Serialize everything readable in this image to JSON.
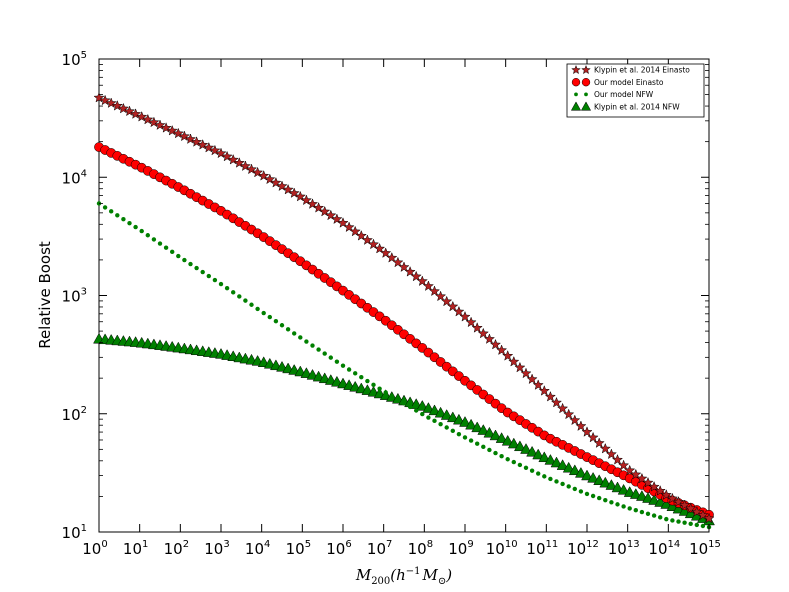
{
  "chart_data": {
    "type": "scatter",
    "xlabel": {
      "text": "M",
      "sub": "200",
      "rest": "(h",
      "sup": "−1",
      "rest2": "M",
      "sub2": "⊙",
      "close": ")"
    },
    "ylabel": "Relative Boost",
    "x_scale": "log",
    "y_scale": "log",
    "xlim": [
      1,
      1000000000000000.0
    ],
    "ylim": [
      10,
      100000
    ],
    "x_ticks": [
      {
        "base": "10",
        "exp": "0"
      },
      {
        "base": "10",
        "exp": "1"
      },
      {
        "base": "10",
        "exp": "2"
      },
      {
        "base": "10",
        "exp": "3"
      },
      {
        "base": "10",
        "exp": "4"
      },
      {
        "base": "10",
        "exp": "5"
      },
      {
        "base": "10",
        "exp": "6"
      },
      {
        "base": "10",
        "exp": "7"
      },
      {
        "base": "10",
        "exp": "8"
      },
      {
        "base": "10",
        "exp": "9"
      },
      {
        "base": "10",
        "exp": "10"
      },
      {
        "base": "10",
        "exp": "11"
      },
      {
        "base": "10",
        "exp": "12"
      },
      {
        "base": "10",
        "exp": "13"
      },
      {
        "base": "10",
        "exp": "14"
      },
      {
        "base": "10",
        "exp": "15"
      }
    ],
    "y_ticks": [
      {
        "base": "10",
        "exp": "1"
      },
      {
        "base": "10",
        "exp": "2"
      },
      {
        "base": "10",
        "exp": "3"
      },
      {
        "base": "10",
        "exp": "4"
      },
      {
        "base": "10",
        "exp": "5"
      }
    ],
    "legend_position": "top-right",
    "grid": false,
    "series": [
      {
        "name": "Klypin et al. 2014 Einasto",
        "marker": "star",
        "color": "#b22222",
        "x": [
          1,
          10.0,
          100.0,
          1000.0,
          10000.0,
          100000.0,
          1000000.0,
          10000000.0,
          100000000.0,
          1000000000.0,
          10000000000.0,
          100000000000.0,
          1000000000000.0,
          10000000000000.0,
          100000000000000.0,
          1000000000000000.0
        ],
        "y": [
          47000,
          33000,
          23000,
          15900,
          10500,
          6700,
          4100,
          2350,
          1280,
          660,
          320,
          150,
          70,
          34,
          20,
          13
        ]
      },
      {
        "name": "Our model Einasto",
        "marker": "circle",
        "color": "#ff0000",
        "x": [
          1,
          10.0,
          100.0,
          1000.0,
          10000.0,
          100000.0,
          1000000.0,
          10000000.0,
          100000000.0,
          1000000000.0,
          10000000000.0,
          100000000000.0,
          1000000000000.0,
          10000000000000.0,
          100000000000000.0,
          1000000000000000.0
        ],
        "y": [
          18000,
          12300,
          8100,
          5200,
          3200,
          1900,
          1100,
          630,
          350,
          190,
          105,
          64,
          43,
          29,
          19,
          14
        ]
      },
      {
        "name": "Our model NFW",
        "marker": "dot",
        "color": "#008000",
        "x": [
          1,
          10.0,
          100.0,
          1000.0,
          10000.0,
          100000.0,
          1000000.0,
          10000000.0,
          100000000.0,
          1000000000.0,
          10000000000.0,
          100000000000.0,
          1000000000000.0,
          10000000000000.0,
          100000000000000.0,
          1000000000000000.0
        ],
        "y": [
          6000,
          3600,
          2100,
          1250,
          730,
          430,
          255,
          155,
          97,
          63,
          42,
          29,
          21,
          16,
          12.7,
          11
        ]
      },
      {
        "name": "Klypin et al. 2014 NFW",
        "marker": "triangle",
        "color": "#008000",
        "x": [
          1,
          10.0,
          100.0,
          1000.0,
          10000.0,
          100000.0,
          1000000.0,
          10000000.0,
          100000000.0,
          1000000000.0,
          10000000000.0,
          100000000000.0,
          1000000000000.0,
          10000000000000.0,
          100000000000000.0,
          1000000000000000.0
        ],
        "y": [
          430,
          400,
          360,
          320,
          275,
          225,
          180,
          145,
          115,
          85,
          60,
          42,
          30,
          22,
          17,
          12.5
        ]
      }
    ]
  }
}
